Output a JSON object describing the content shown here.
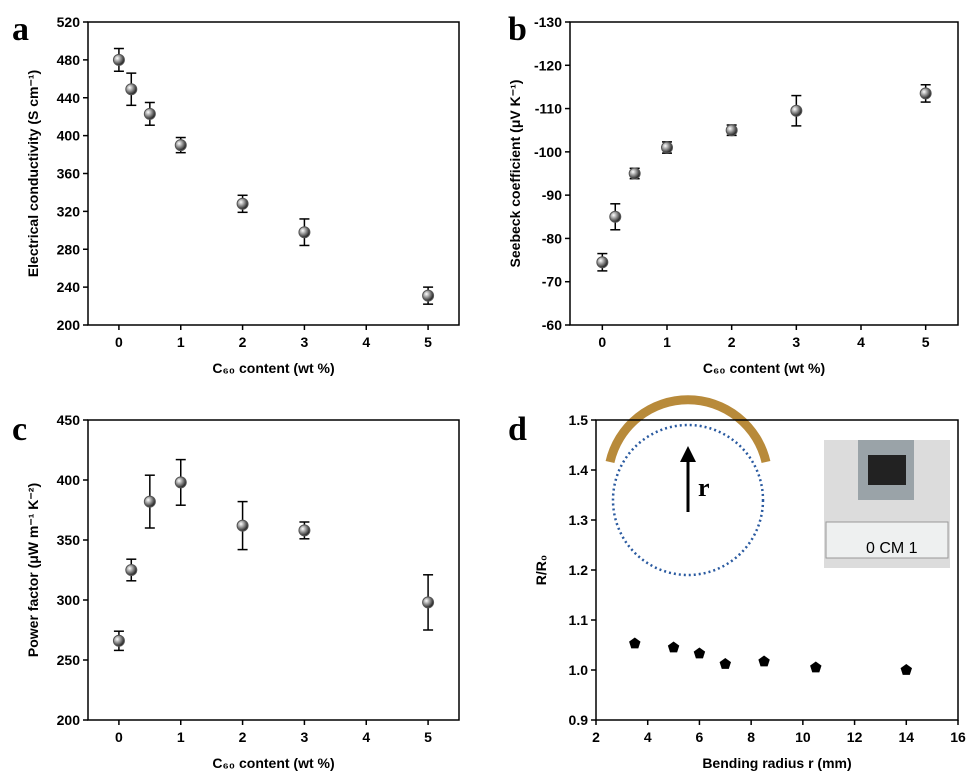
{
  "chart_data": [
    {
      "type": "scatter",
      "panel_label": "a",
      "xlabel": "C₆₀ content (wt %)",
      "ylabel": "Electrical conductivity (S cm⁻¹)",
      "x": [
        0,
        0.2,
        0.5,
        1,
        2,
        3,
        5
      ],
      "values": [
        480,
        449,
        423,
        390,
        328,
        298,
        231
      ],
      "errors": [
        12,
        17,
        12,
        8,
        9,
        14,
        9
      ],
      "xlim": [
        -0.5,
        5.5
      ],
      "xticks": [
        0,
        1,
        2,
        3,
        4,
        5
      ],
      "ylim": [
        200,
        520
      ],
      "yticks": [
        200,
        240,
        280,
        320,
        360,
        400,
        440,
        480,
        520
      ],
      "marker": "circle",
      "color": "#555555"
    },
    {
      "type": "scatter",
      "panel_label": "b",
      "xlabel": "C₆₀ content (wt %)",
      "ylabel": "Seebeck coefficient (μV K⁻¹)",
      "x": [
        0,
        0.2,
        0.5,
        1,
        2,
        3,
        5
      ],
      "values": [
        -74.5,
        -85,
        -95,
        -101,
        -105,
        -109.5,
        -113.5
      ],
      "errors": [
        2,
        3,
        1.2,
        1.3,
        1.2,
        3.5,
        2
      ],
      "xlim": [
        -0.5,
        5.5
      ],
      "xticks": [
        0,
        1,
        2,
        3,
        4,
        5
      ],
      "ylim": [
        -60,
        -130
      ],
      "yticks": [
        -60,
        -70,
        -80,
        -90,
        -100,
        -110,
        -120,
        -130
      ],
      "marker": "circle",
      "color": "#555555"
    },
    {
      "type": "scatter",
      "panel_label": "c",
      "xlabel": "C₆₀ content (wt %)",
      "ylabel": "Power factor (μW m⁻¹ K⁻²)",
      "x": [
        0,
        0.2,
        0.5,
        1,
        2,
        3,
        5
      ],
      "values": [
        266,
        325,
        382,
        398,
        362,
        358,
        298
      ],
      "errors": [
        8,
        9,
        22,
        19,
        20,
        7,
        23
      ],
      "xlim": [
        -0.5,
        5.5
      ],
      "xticks": [
        0,
        1,
        2,
        3,
        4,
        5
      ],
      "ylim": [
        200,
        450
      ],
      "yticks": [
        200,
        250,
        300,
        350,
        400,
        450
      ],
      "marker": "circle",
      "color": "#555555"
    },
    {
      "type": "scatter",
      "panel_label": "d",
      "xlabel": "Bending radius r (mm)",
      "ylabel": "R/R₀",
      "x": [
        3.5,
        5,
        6,
        7,
        8.5,
        10.5,
        14
      ],
      "values": [
        1.053,
        1.045,
        1.033,
        1.012,
        1.017,
        1.005,
        1.0
      ],
      "xlim": [
        2,
        16
      ],
      "xticks": [
        2,
        4,
        6,
        8,
        10,
        12,
        14,
        16
      ],
      "ylim": [
        0.9,
        1.5
      ],
      "yticks": [
        0.9,
        {
          "value": 1.0,
          "label": "1.0"
        },
        1.1,
        1.2,
        1.3,
        1.4,
        1.5
      ],
      "marker": "pentagon",
      "color": "#000000",
      "annotations": [
        "r",
        "0 CM 1"
      ]
    }
  ]
}
